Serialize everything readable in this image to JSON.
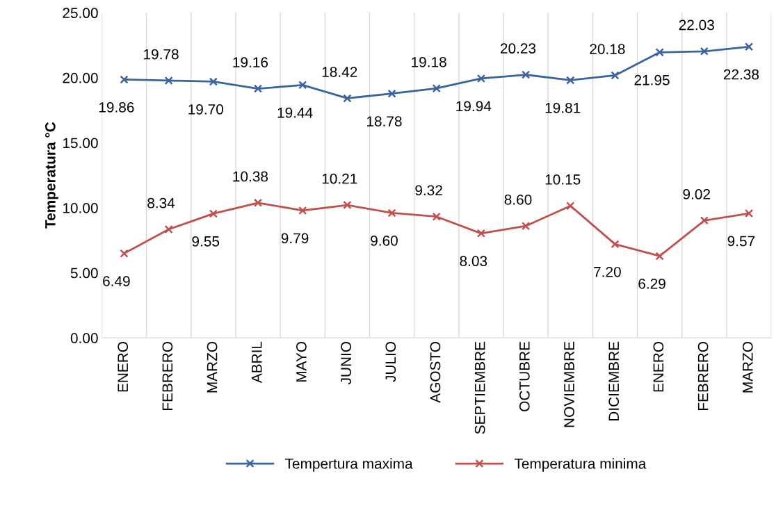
{
  "chart_data": {
    "type": "line",
    "ylabel": "Temperatura °C",
    "categories": [
      "ENERO",
      "FEBRERO",
      "MARZO",
      "ABRIL",
      "MAYO",
      "JUNIO",
      "JULIO",
      "AGOSTO",
      "SEPTIEMBRE",
      "OCTUBRE",
      "NOVIEMBRE",
      "DICIEMBRE",
      "ENERO",
      "FEBRERO",
      "MARZO"
    ],
    "series": [
      {
        "name": "Tempertura maxima",
        "color": "#3a64a0",
        "values": [
          19.86,
          19.78,
          19.7,
          19.16,
          19.44,
          18.42,
          18.78,
          19.18,
          19.94,
          20.23,
          19.81,
          20.18,
          21.95,
          22.03,
          22.38
        ],
        "value_labels": [
          "19.86",
          "19.78",
          "19.70",
          "19.16",
          "19.44",
          "18.42",
          "18.78",
          "19.18",
          "19.94",
          "20.23",
          "19.81",
          "20.18",
          "21.95",
          "22.03",
          "22.38"
        ]
      },
      {
        "name": "Temperatura minima",
        "color": "#c0504d",
        "values": [
          6.49,
          8.34,
          9.55,
          10.38,
          9.79,
          10.21,
          9.6,
          9.32,
          8.03,
          8.6,
          10.15,
          7.2,
          6.29,
          9.02,
          9.57
        ],
        "value_labels": [
          "6.49",
          "8.34",
          "9.55",
          "10.38",
          "9.79",
          "10.21",
          "9.60",
          "9.32",
          "8.03",
          "8.60",
          "10.15",
          "7.20",
          "6.29",
          "9.02",
          "9.57"
        ]
      }
    ],
    "ylim": [
      0,
      25
    ],
    "yticks": [
      {
        "value": 0,
        "label": "0.00"
      },
      {
        "value": 5,
        "label": "5.00"
      },
      {
        "value": 10,
        "label": "10.00"
      },
      {
        "value": 15,
        "label": "15.00"
      },
      {
        "value": 20,
        "label": "20.00"
      },
      {
        "value": 25,
        "label": "25.00"
      }
    ],
    "grid": "x",
    "legend": "bottom",
    "marker": "cross",
    "line_style": "solid"
  }
}
